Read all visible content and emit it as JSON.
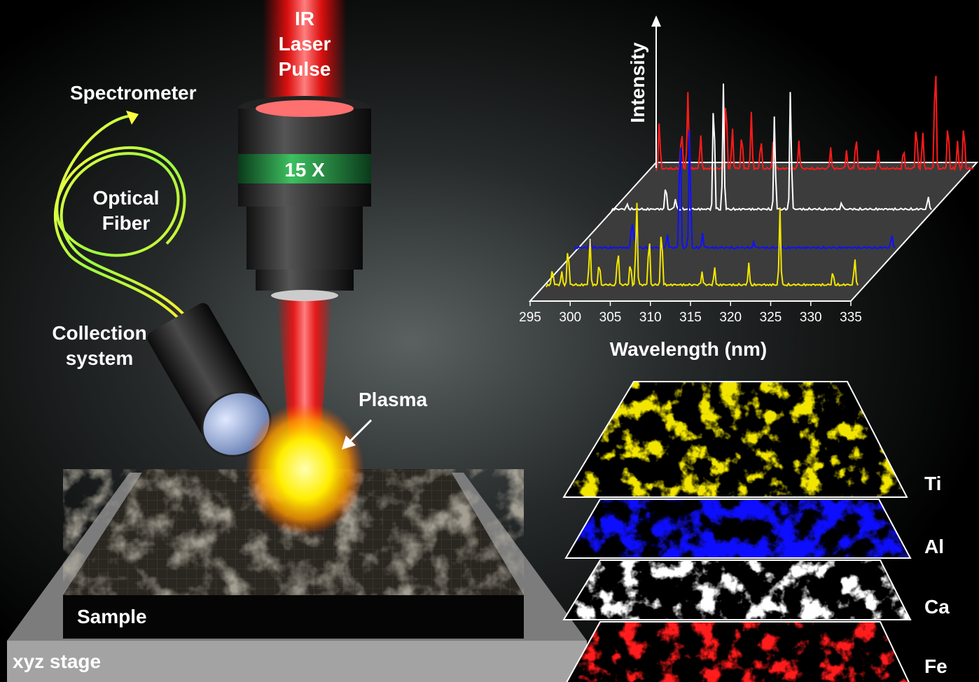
{
  "laser": {
    "lines": [
      "IR",
      "Laser",
      "Pulse"
    ]
  },
  "objective": {
    "label": "15 X"
  },
  "fiber": {
    "destination": "Spectrometer",
    "lines": [
      "Optical",
      "Fiber"
    ]
  },
  "collection": {
    "lines": [
      "Collection",
      "system"
    ]
  },
  "plasma": {
    "label": "Plasma"
  },
  "sample": {
    "label": "Sample"
  },
  "stage": {
    "label": "xyz stage"
  },
  "spectrum": {
    "y_axis": "Intensity",
    "x_axis": "Wavelength (nm)",
    "x_ticks": [
      "295",
      "300",
      "305",
      "310",
      "315",
      "320",
      "325",
      "330",
      "335"
    ]
  },
  "maps": [
    {
      "element": "Ti",
      "color": "#f2e600"
    },
    {
      "element": "Al",
      "color": "#1010ff"
    },
    {
      "element": "Ca",
      "color": "#ffffff"
    },
    {
      "element": "Fe",
      "color": "#ff1a1a"
    }
  ]
}
